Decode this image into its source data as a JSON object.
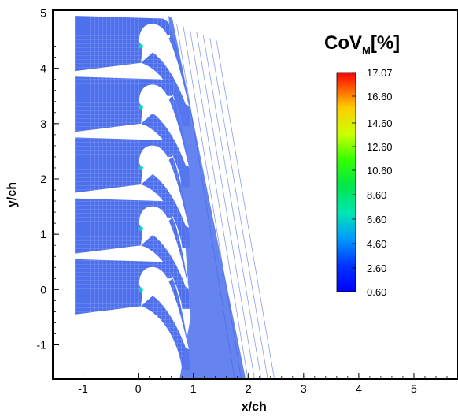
{
  "chart_data": {
    "type": "heatmap",
    "xlabel": "x/ch",
    "ylabel": "y/ch",
    "xlim": [
      -1.55,
      5.8
    ],
    "ylim": [
      -1.62,
      5.05
    ],
    "x_ticks": [
      -1,
      0,
      1,
      2,
      3,
      4,
      5
    ],
    "y_ticks": [
      -1,
      0,
      1,
      2,
      3,
      4,
      5
    ],
    "grid": false,
    "legend": {
      "title_main": "CoV",
      "title_sub": "M",
      "title_suffix": "[%]",
      "placement": "top-right",
      "levels": [
        "17.07",
        "16.60",
        "14.60",
        "12.60",
        "10.60",
        "8.60",
        "6.60",
        "4.60",
        "2.60",
        "0.60"
      ],
      "colors": [
        "#ff0000",
        "#ff6600",
        "#ffcc00",
        "#ccff00",
        "#33ff00",
        "#00e64d",
        "#00e6b3",
        "#0099ff",
        "#0033ff",
        "#0000ff"
      ]
    },
    "field": {
      "dominant_value_range": [
        0.6,
        2.6
      ],
      "dominant_color": "#5577ee",
      "mesh_color": "#ffffff",
      "blade_count": 5,
      "blade_pitch": 1.1,
      "blade_leading_edge_y": [
        4.5,
        3.4,
        2.3,
        1.2,
        0.1
      ]
    }
  }
}
